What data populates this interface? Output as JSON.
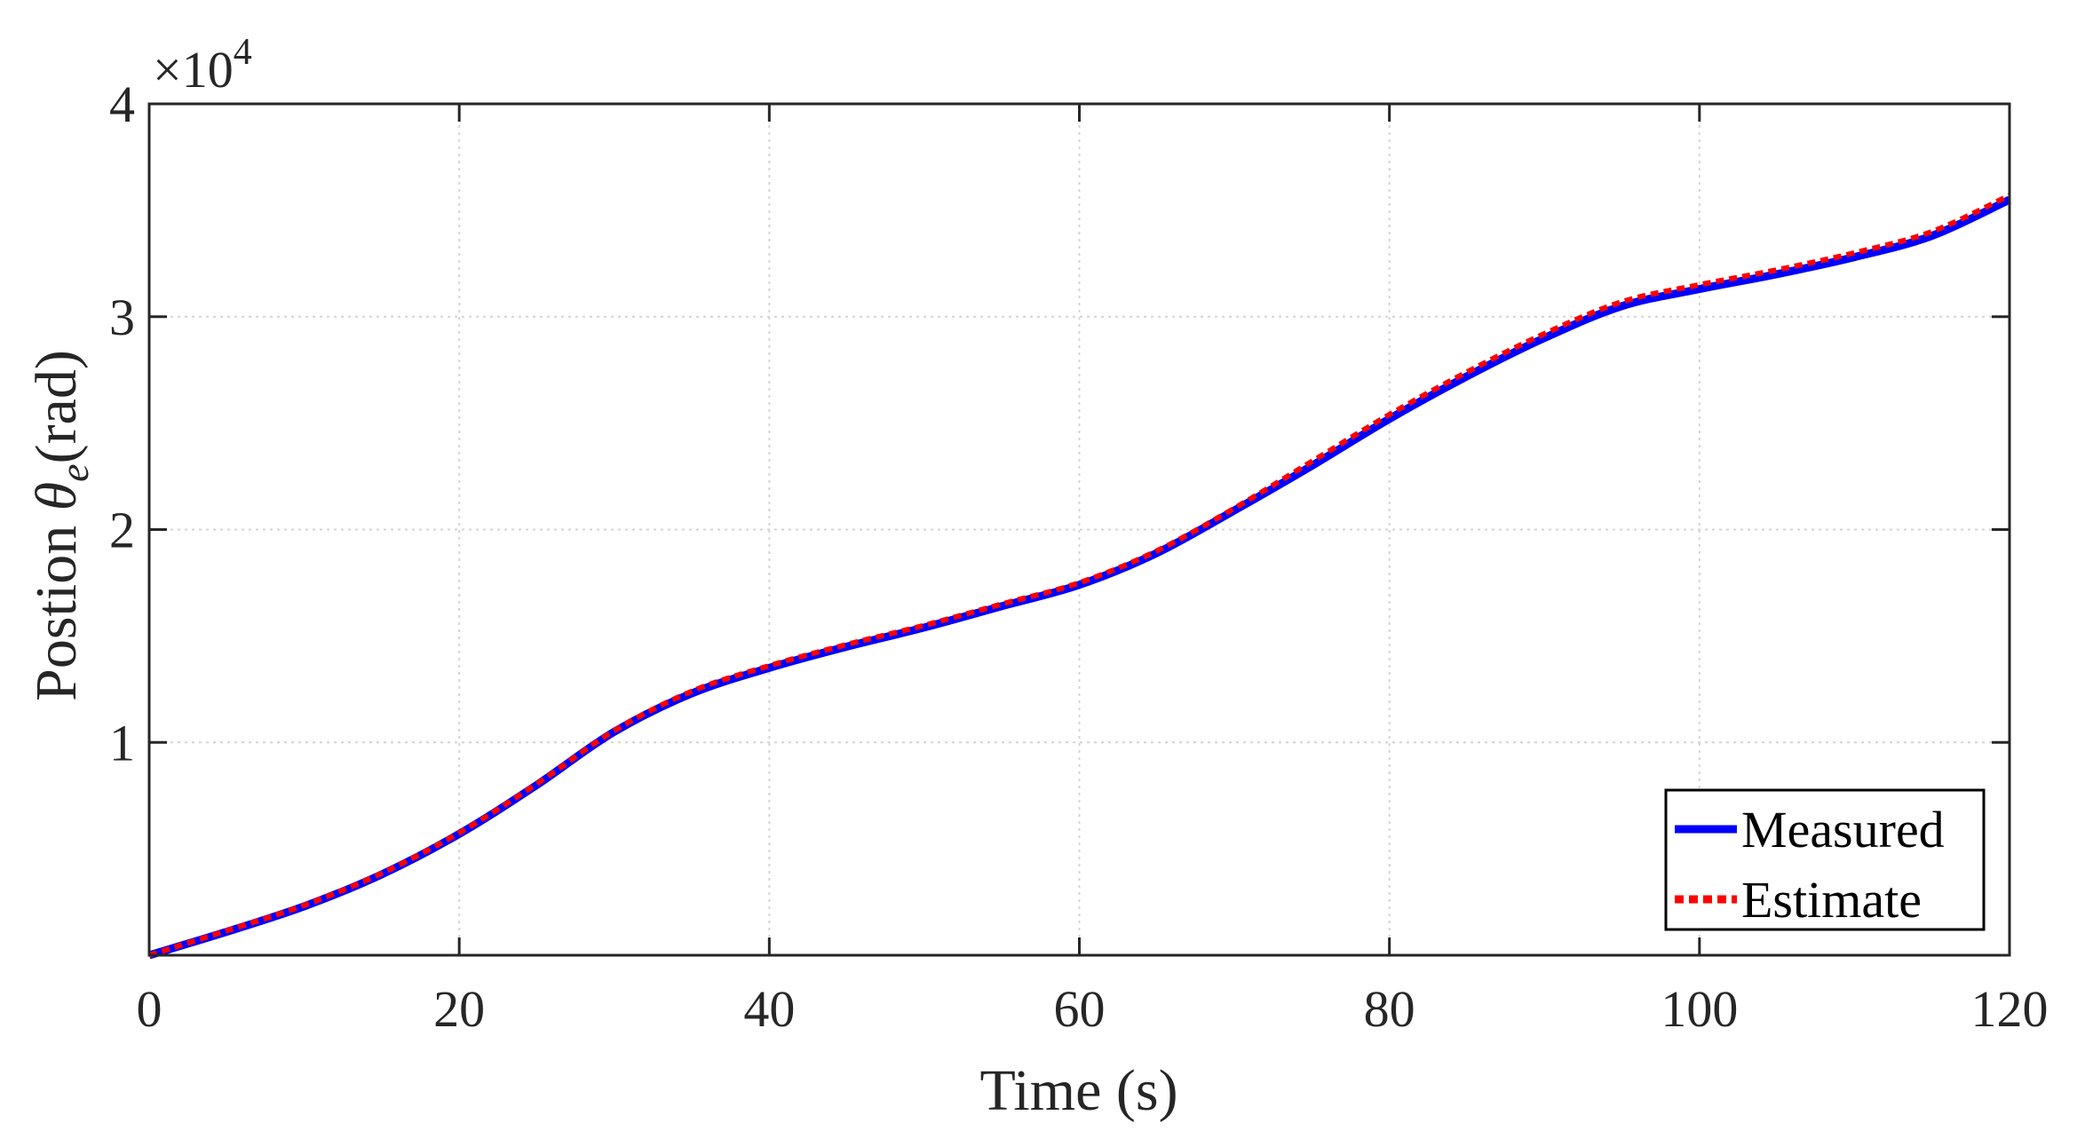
{
  "chart_data": {
    "type": "line",
    "xlabel": "Time (s)",
    "ylabel": {
      "prefix": "Postion ",
      "symbol": "θ",
      "subscript": "e",
      "suffix": "(rad)"
    },
    "y_multiplier": {
      "base": "×10",
      "exponent": "4"
    },
    "xlim": [
      0,
      120
    ],
    "ylim": [
      0,
      40000
    ],
    "x_ticks": [
      0,
      20,
      40,
      60,
      80,
      100,
      120
    ],
    "x_tick_labels": [
      "0",
      "20",
      "40",
      "60",
      "80",
      "100",
      "120"
    ],
    "y_ticks": [
      10000,
      20000,
      30000,
      40000
    ],
    "y_tick_labels": [
      "1",
      "2",
      "3",
      "4"
    ],
    "grid": true,
    "legend_position": "bottom-right",
    "series": [
      {
        "name": "Measured",
        "color": "#0000ff",
        "style": "solid",
        "x": [
          0,
          5,
          10,
          15,
          20,
          25,
          30,
          35,
          40,
          45,
          50,
          55,
          60,
          65,
          70,
          75,
          80,
          85,
          90,
          95,
          100,
          105,
          110,
          115,
          120
        ],
        "y": [
          0,
          1100,
          2300,
          3800,
          5700,
          8000,
          10500,
          12300,
          13500,
          14500,
          15400,
          16400,
          17400,
          18900,
          20900,
          23000,
          25200,
          27200,
          29000,
          30500,
          31300,
          32000,
          32800,
          33800,
          35500
        ]
      },
      {
        "name": "Estimate",
        "color": "#ff0000",
        "style": "dotted",
        "x": [
          0,
          5,
          10,
          15,
          20,
          25,
          30,
          35,
          40,
          45,
          50,
          55,
          60,
          65,
          70,
          75,
          80,
          85,
          90,
          95,
          100,
          105,
          110,
          115,
          120
        ],
        "y": [
          0,
          1150,
          2350,
          3850,
          5750,
          8050,
          10550,
          12400,
          13600,
          14600,
          15500,
          16500,
          17500,
          19000,
          21000,
          23200,
          25400,
          27400,
          29200,
          30700,
          31500,
          32200,
          33000,
          34000,
          35700
        ]
      }
    ]
  }
}
